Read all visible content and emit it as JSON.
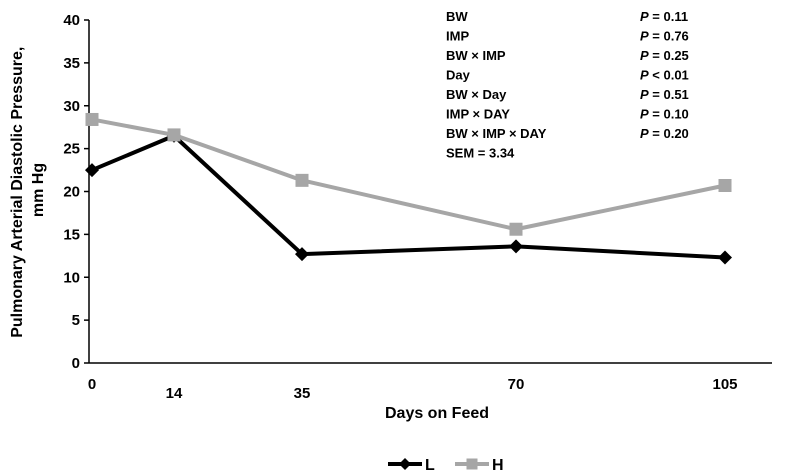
{
  "chart_data": {
    "type": "line",
    "xlabel": "Days on Feed",
    "ylabel_lines": [
      "Pulmonary Arterial Diastolic Pressure,",
      "mm Hg"
    ],
    "x_ticks": [
      "0",
      "14",
      "35",
      "70",
      "105"
    ],
    "x_values": [
      0,
      14,
      35,
      70,
      105
    ],
    "ylim": [
      0,
      40
    ],
    "y_ticks": [
      "0",
      "5",
      "10",
      "15",
      "20",
      "25",
      "30",
      "35",
      "40"
    ],
    "grid": false,
    "legend_position": "bottom",
    "series": [
      {
        "name": "L",
        "color": "#000000",
        "marker": "diamond",
        "x": [
          0,
          14,
          35,
          70,
          105
        ],
        "values": [
          22.5,
          26.5,
          12.7,
          13.6,
          12.3
        ]
      },
      {
        "name": "H",
        "color": "#a6a6a6",
        "marker": "square",
        "x": [
          0,
          14,
          35,
          70,
          105
        ],
        "values": [
          28.4,
          26.6,
          21.3,
          15.6,
          20.7
        ]
      }
    ],
    "annotations": [
      {
        "label": "BW",
        "p": "P = 0.11"
      },
      {
        "label": "IMP",
        "p": "P = 0.76"
      },
      {
        "label": "BW  × IMP",
        "p": "P = 0.25"
      },
      {
        "label": "Day",
        "p": "P < 0.01"
      },
      {
        "label": "BW  × Day",
        "p": "P = 0.51"
      },
      {
        "label": "IMP ×  DAY",
        "p": "P = 0.10"
      },
      {
        "label": "BW  × IMP  × DAY",
        "p": "P = 0.20"
      },
      {
        "label": "SEM = 3.34",
        "p": ""
      }
    ]
  }
}
